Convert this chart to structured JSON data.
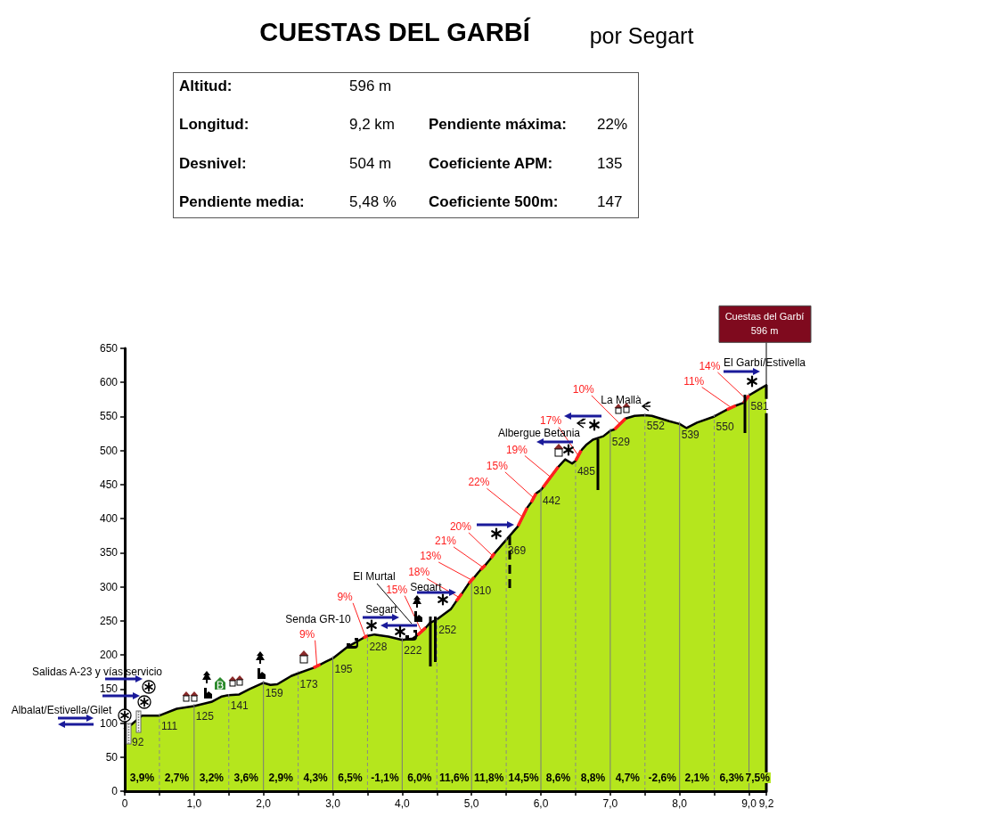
{
  "chart_data": {
    "type": "area",
    "title": "CUESTAS DEL GARBÍ",
    "subtitle": "por Segart",
    "x": [
      0,
      0.1,
      0.25,
      0.5,
      0.75,
      1,
      1.25,
      1.4,
      1.5,
      1.65,
      1.8,
      2,
      2.1,
      2.2,
      2.4,
      2.5,
      2.72,
      2.82,
      2.9,
      3,
      3.2,
      3.44,
      3.5,
      3.6,
      3.8,
      4,
      4.15,
      4.22,
      4.34,
      4.4,
      4.5,
      4.7,
      4.78,
      4.86,
      4.96,
      5,
      5.04,
      5.13,
      5.2,
      5.28,
      5.33,
      5.5,
      5.67,
      5.8,
      5.86,
      5.93,
      6,
      6.03,
      6.25,
      6.35,
      6.45,
      6.5,
      6.58,
      6.65,
      6.75,
      6.9,
      7,
      7.06,
      7.22,
      7.35,
      7.5,
      7.6,
      7.85,
      8,
      8.1,
      8.25,
      8.5,
      8.68,
      8.81,
      8.92,
      9,
      9.1,
      9.25
    ],
    "series": [
      {
        "color": "#b5e61d",
        "values": [
          92,
          98,
          111,
          111,
          121,
          125,
          131,
          139,
          141,
          142,
          150,
          159,
          156,
          157,
          169,
          173,
          181,
          186,
          190,
          195,
          211,
          225,
          228,
          230,
          227,
          222,
          224,
          229,
          240,
          247,
          252,
          267,
          279,
          290,
          305,
          310,
          314,
          325,
          332,
          342,
          349,
          369,
          389,
          416,
          424,
          437,
          442,
          446,
          476,
          487,
          481,
          485,
          500,
          508,
          516,
          521,
          529,
          531,
          547,
          551,
          552,
          551,
          543,
          539,
          533,
          541,
          550,
          560,
          566,
          570,
          581,
          587,
          596
        ],
        "value_labels": [
          "92",
          null,
          null,
          "111",
          null,
          "125",
          null,
          null,
          "141",
          null,
          null,
          "159",
          null,
          null,
          null,
          "173",
          null,
          null,
          null,
          "195",
          null,
          null,
          "228",
          null,
          null,
          "222",
          null,
          null,
          null,
          null,
          "252",
          null,
          null,
          null,
          null,
          "310",
          null,
          null,
          null,
          null,
          null,
          "369",
          null,
          null,
          null,
          null,
          "442",
          null,
          null,
          null,
          null,
          "485",
          null,
          null,
          null,
          null,
          "529",
          null,
          null,
          null,
          "552",
          null,
          null,
          "539",
          null,
          null,
          "550",
          null,
          null,
          null,
          "581",
          null,
          null
        ]
      },
      {
        "type": "line",
        "color": "#ff2020",
        "x": [
          2.72,
          2.82,
          2.9,
          3.44,
          3.5,
          3.6,
          4.22,
          4.34,
          4.4,
          4.78,
          4.86,
          4.9,
          4.96,
          5.04,
          5.08,
          5.13,
          5.2,
          5.24,
          5.28,
          5.33,
          5.4,
          5.67,
          5.8,
          5.83,
          5.86,
          5.93,
          5.96,
          6.03,
          6.25,
          6.3,
          6.5,
          6.58,
          6.62,
          7.06,
          7.22,
          7.3,
          8.68,
          8.81,
          8.86,
          8.92,
          9
        ],
        "values": [
          181,
          186,
          null,
          225,
          228,
          null,
          229,
          240,
          null,
          279,
          290,
          null,
          305,
          314,
          null,
          325,
          332,
          null,
          342,
          349,
          null,
          389,
          416,
          null,
          424,
          437,
          null,
          446,
          476,
          null,
          485,
          500,
          null,
          531,
          547,
          null,
          560,
          566,
          null,
          570,
          581
        ]
      }
    ],
    "xlim": [
      0,
      9.25
    ],
    "xticks": [
      0,
      {
        "value": 0.5,
        "label": null
      },
      {
        "value": 1,
        "label": "1,0"
      },
      {
        "value": 1.5,
        "label": null
      },
      {
        "value": 2,
        "label": "2,0"
      },
      {
        "value": 2.5,
        "label": null
      },
      {
        "value": 3,
        "label": "3,0"
      },
      {
        "value": 3.5,
        "label": null
      },
      {
        "value": 4,
        "label": "4,0"
      },
      {
        "value": 4.5,
        "label": null
      },
      {
        "value": 5,
        "label": "5,0"
      },
      {
        "value": 5.5,
        "label": null
      },
      {
        "value": 6,
        "label": "6,0"
      },
      {
        "value": 6.5,
        "label": null
      },
      {
        "value": 7,
        "label": "7,0"
      },
      {
        "value": 7.5,
        "label": null
      },
      {
        "value": 8,
        "label": "8,0"
      },
      {
        "value": 8.5,
        "label": null
      },
      {
        "value": 9,
        "label": "9,0"
      },
      {
        "value": 9.25,
        "label": "9,2"
      }
    ],
    "ylim": [
      0,
      650
    ],
    "yticks": [
      0,
      50,
      100,
      150,
      200,
      250,
      300,
      350,
      400,
      450,
      500,
      550,
      600,
      650
    ],
    "grid": "x",
    "annotations": [
      "Altitud:",
      "596 m",
      "Longitud:",
      "9,2 km",
      "Pendiente máxima:",
      "22%",
      "Desnivel:",
      "504 m",
      "Coeficiente APM:",
      "135",
      "Pendiente media:",
      "5,48 %",
      "Coeficiente 500m:",
      "147",
      "3,9%",
      "2,7%",
      "3,2%",
      "3,6%",
      "2,9%",
      "4,3%",
      "6,5%",
      "-1,1%",
      "6,0%",
      "11,6%",
      "11,8%",
      "14,5%",
      "8,6%",
      "8,8%",
      "4,7%",
      "-2,6%",
      "2,1%",
      "6,3%",
      "7,5%",
      {
        "text": "9%",
        "x": 2.77,
        "y": 183.5
      },
      {
        "text": "9%",
        "x": 3.47,
        "y": 226.5
      },
      {
        "text": "15%",
        "x": 4.28,
        "y": 234.5
      },
      {
        "text": "18%",
        "x": 4.82,
        "y": 284.5
      },
      {
        "text": "13%",
        "x": 5,
        "y": 310
      },
      {
        "text": "21%",
        "x": 5.165,
        "y": 328.5
      },
      {
        "text": "20%",
        "x": 5.305,
        "y": 345.5
      },
      {
        "text": "22%",
        "x": 5.735,
        "y": 402.5
      },
      {
        "text": "15%",
        "x": 5.895,
        "y": 430.5
      },
      {
        "text": "19%",
        "x": 6.14,
        "y": 461
      },
      {
        "text": "17%",
        "x": 6.54,
        "y": 492.5
      },
      {
        "text": "10%",
        "x": 7.14,
        "y": 539
      },
      {
        "text": "11%",
        "x": 8.745,
        "y": 563
      },
      {
        "text": "14%",
        "x": 8.96,
        "y": 575.5
      },
      "Salidas A-23 y vías servicio",
      "Albalat/Estivella/Gilet",
      "El Murtal",
      "Senda GR-10",
      "Segart",
      "Segart",
      "Albergue Betania",
      "La Mallà",
      "El Garbí/Estivella",
      "Cuestas del Garbí",
      "596 m"
    ]
  }
}
